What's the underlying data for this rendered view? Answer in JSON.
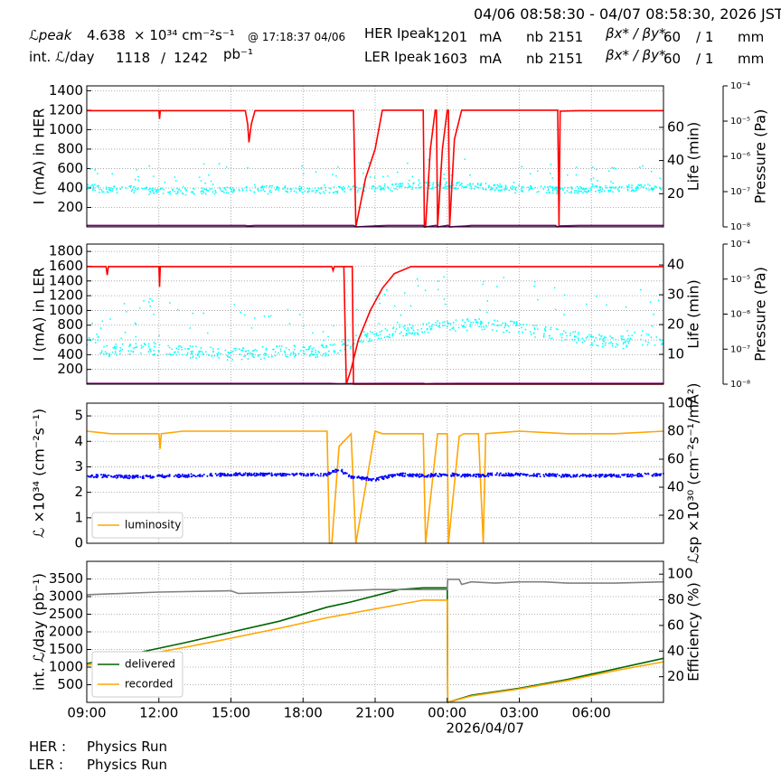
{
  "header": {
    "time_range": "04/06 08:58:30 - 04/07 08:58:30, 2026 JST",
    "row1": {
      "lumi_peak_label": "ℒpeak",
      "lumi_peak_value": "4.638",
      "lumi_peak_unit": "× 10³⁴ cm⁻²s⁻¹",
      "lumi_peak_time": "@ 17:18:37 04/06",
      "ring_label": "HER Ipeak",
      "current": "1201",
      "current_unit": "mA",
      "nb_label": "nb",
      "nb": "2151",
      "beta_label": "βx* / βy*",
      "beta_x": "60",
      "beta_y": "/ 1",
      "beta_unit": "mm"
    },
    "row2": {
      "intlumi_label": "int. ℒ/day",
      "intlumi_recorded": "1118",
      "sep": "/",
      "intlumi_delivered": "1242",
      "intlumi_unit": "pb⁻¹",
      "ring_label": "LER Ipeak",
      "current": "1603",
      "current_unit": "mA",
      "nb_label": "nb",
      "nb": "2151",
      "beta_label": "βx* / βy*",
      "beta_x": "60",
      "beta_y": "/ 1",
      "beta_unit": "mm"
    }
  },
  "footer": {
    "her_label": "HER :",
    "her_status": "Physics Run",
    "ler_label": "LER :",
    "ler_status": "Physics Run"
  },
  "colors": {
    "current": "#ff0000",
    "life": "#00ffff",
    "pressure": "#800080",
    "luminosity": "#ffa500",
    "specific": "#0000ff",
    "delivered": "#006400",
    "recorded": "#ffa500",
    "efficiency": "#808080"
  },
  "chart_data": [
    {
      "id": "her",
      "type": "line",
      "ylabel": "I (mA) in HER",
      "ylim": [
        0,
        1450
      ],
      "yticks": [
        200,
        400,
        600,
        800,
        1000,
        1200,
        1400
      ],
      "y2label": "Life (min)",
      "y2lim": [
        0,
        85
      ],
      "y2ticks": [
        20,
        40,
        60
      ],
      "y3label": "Pressure (Pa)",
      "y3ticks": [
        "10⁻⁴",
        "10⁻⁵",
        "10⁻⁶",
        "10⁻⁷",
        "10⁻⁸"
      ],
      "grid": true,
      "series": [
        {
          "role": "current",
          "x": [
            0,
            0.6,
            3.0,
            3.03,
            3.06,
            6.6,
            6.7,
            6.75,
            6.85,
            7.0,
            11.0,
            11.1,
            11.2,
            11.6,
            12.0,
            12.3,
            12.8,
            13.0,
            14.0,
            14.05,
            14.1,
            14.3,
            14.5,
            14.55,
            14.6,
            14.8,
            15.0,
            15.05,
            15.1,
            15.3,
            15.6,
            15.7,
            15.8,
            16.2,
            16.5,
            17.0,
            18.0,
            18.5,
            19.0,
            19.6,
            19.65,
            19.7,
            20.5,
            24.0
          ],
          "y": [
            1195,
            1195,
            1195,
            1110,
            1195,
            1195,
            1050,
            870,
            1060,
            1195,
            1195,
            1195,
            0,
            500,
            800,
            1200,
            1200,
            1200,
            1200,
            0,
            0,
            800,
            1200,
            1200,
            0,
            800,
            1200,
            1200,
            0,
            900,
            1200,
            1200,
            1200,
            1200,
            1200,
            1200,
            1200,
            1200,
            1200,
            1200,
            0,
            1190,
            1195,
            1195
          ]
        },
        {
          "role": "pressure",
          "x": [
            0,
            6.6,
            6.7,
            7.0,
            11.0,
            11.1,
            11.2,
            12.0,
            12.5,
            13.0,
            14.0,
            14.05,
            14.1,
            14.5,
            14.55,
            14.6,
            15.0,
            15.05,
            15.1,
            15.8,
            16.0,
            17.0,
            18.0,
            19.5,
            19.6,
            19.7,
            20.5,
            24.0
          ],
          "y": [
            15,
            15,
            10,
            15,
            15,
            15,
            0,
            10,
            15,
            15,
            15,
            0,
            0,
            15,
            15,
            0,
            15,
            15,
            0,
            10,
            15,
            15,
            15,
            15,
            0,
            10,
            15,
            15
          ]
        }
      ],
      "lifetime": {
        "x": [
          0.5,
          2.0,
          4.0,
          6.0,
          8.0,
          10.0,
          12.5,
          14.2,
          16.0,
          18.0,
          20.0,
          22.0,
          23.5
        ],
        "y": [
          22,
          23,
          21,
          22,
          23,
          22,
          24,
          25,
          25,
          23,
          22,
          23,
          24
        ]
      }
    },
    {
      "id": "ler",
      "type": "line",
      "ylabel": "I (mA) in LER",
      "ylim": [
        0,
        1900
      ],
      "yticks": [
        200,
        400,
        600,
        800,
        1000,
        1200,
        1400,
        1600,
        1800
      ],
      "y2label": "Life (min)",
      "y2lim": [
        0,
        47
      ],
      "y2ticks": [
        10,
        20,
        30,
        40
      ],
      "y3label": "Pressure (Pa)",
      "y3ticks": [
        "10⁻⁴",
        "10⁻⁵",
        "10⁻⁶",
        "10⁻⁷",
        "10⁻⁸"
      ],
      "grid": true,
      "series": [
        {
          "role": "current",
          "x": [
            0,
            0.8,
            0.85,
            0.9,
            3.0,
            3.03,
            3.06,
            10.2,
            10.25,
            10.3,
            11.0,
            11.05,
            11.1,
            13.0,
            13.05,
            13.1,
            14.0,
            15.0,
            15.05,
            15.1,
            16.0,
            18.0,
            19.0,
            24.0
          ],
          "y": [
            1595,
            1595,
            1480,
            1595,
            1595,
            1320,
            1595,
            1595,
            1540,
            1595,
            1595,
            1595,
            0,
            0,
            0,
            0,
            0,
            0,
            0,
            0,
            0,
            0,
            0,
            0
          ]
        },
        {
          "role": "current2",
          "x": [
            10.7,
            10.8,
            11.0,
            11.3,
            11.8,
            12.3,
            12.8,
            13.5,
            14.0,
            14.1,
            14.3,
            14.7,
            15.0,
            15.5,
            16.0,
            17.0,
            18.0,
            20.0,
            22.0,
            24.0
          ],
          "y": [
            1595,
            0,
            200,
            600,
            1000,
            1300,
            1500,
            1595,
            1595,
            1595,
            1595,
            1595,
            1595,
            1595,
            1595,
            1595,
            1595,
            1595,
            1595,
            1595
          ]
        },
        {
          "role": "pressure",
          "x": [
            0,
            10.0,
            10.1,
            10.5,
            11.0,
            11.3,
            11.6,
            12.5,
            13.5,
            14.0,
            14.1,
            14.5,
            15.0,
            15.5,
            16.0,
            17.5,
            18.0,
            19.0,
            20.0,
            22.0,
            24.0
          ],
          "y": [
            10,
            10,
            10,
            5,
            8,
            9,
            9,
            10,
            10,
            10,
            5,
            8,
            9,
            10,
            10,
            10,
            10,
            10,
            10,
            10,
            10
          ]
        }
      ],
      "lifetime": {
        "x": [
          0.5,
          2.0,
          4.0,
          6.0,
          8.0,
          10.0,
          12.0,
          14.0,
          16.0,
          18.0,
          20.0,
          22.0,
          23.5
        ],
        "y": [
          11,
          12,
          11,
          10,
          11,
          11,
          17,
          19,
          20,
          19,
          16,
          14,
          15
        ]
      }
    },
    {
      "id": "lumi",
      "type": "line",
      "ylabel": "ℒ ×10³⁴ (cm⁻²s⁻¹)",
      "ylim": [
        0,
        5.5
      ],
      "yticks": [
        0,
        1,
        2,
        3,
        4,
        5
      ],
      "y2label": "ℒsp ×10³⁰ (cm⁻²s⁻¹/mA²)",
      "y2lim": [
        0,
        100
      ],
      "y2ticks": [
        20,
        40,
        60,
        80,
        100
      ],
      "grid": true,
      "legend": {
        "position": "lower-left",
        "entries": [
          "luminosity"
        ]
      },
      "series": [
        {
          "name": "luminosity",
          "role": "luminosity",
          "x": [
            0,
            1.0,
            2.0,
            3.0,
            3.05,
            3.1,
            4.0,
            6.0,
            8.0,
            10.0,
            10.1,
            10.2,
            10.5,
            11.0,
            11.2,
            12.0,
            12.3,
            13.0,
            14.0,
            14.1,
            14.6,
            15.0,
            15.05,
            15.5,
            15.7,
            16.0,
            16.3,
            16.5,
            16.6,
            18.0,
            20.0,
            22.0,
            24.0
          ],
          "y": [
            4.4,
            4.3,
            4.3,
            4.3,
            3.7,
            4.3,
            4.4,
            4.4,
            4.4,
            4.4,
            0,
            0,
            3.8,
            4.3,
            0,
            4.4,
            4.3,
            4.3,
            4.3,
            0,
            4.3,
            4.3,
            0,
            4.2,
            4.3,
            4.3,
            4.3,
            0,
            4.3,
            4.4,
            4.3,
            4.3,
            4.4
          ]
        },
        {
          "name": "",
          "role": "specific",
          "x": [
            0,
            2.0,
            4.0,
            6.0,
            8.0,
            10.0,
            10.5,
            11.0,
            12.0,
            13.0,
            14.0,
            15.0,
            16.0,
            17.0,
            18.0,
            20.0,
            22.0,
            24.0
          ],
          "y": [
            2.65,
            2.6,
            2.65,
            2.7,
            2.7,
            2.7,
            2.9,
            2.6,
            2.5,
            2.7,
            2.65,
            2.7,
            2.65,
            2.7,
            2.7,
            2.65,
            2.65,
            2.7
          ]
        }
      ]
    },
    {
      "id": "intlumi",
      "type": "line",
      "ylabel": "int. ℒ/day (pb⁻¹)",
      "ylim": [
        0,
        4000
      ],
      "yticks": [
        500,
        1000,
        1500,
        2000,
        2500,
        3000,
        3500
      ],
      "y2label": "Efficiency (%)",
      "y2lim": [
        0,
        110
      ],
      "y2ticks": [
        20,
        40,
        60,
        80,
        100
      ],
      "grid": true,
      "legend": {
        "position": "lower-left",
        "entries": [
          "delivered",
          "recorded"
        ]
      },
      "xticks": [
        "09:00",
        "12:00",
        "15:00",
        "18:00",
        "21:00",
        "00:00",
        "03:00",
        "06:00"
      ],
      "xlabel": "2026/04/07",
      "series": [
        {
          "name": "delivered",
          "role": "delivered",
          "x": [
            0,
            4.0,
            8.0,
            10.0,
            11.0,
            13.0,
            14.0,
            15.0,
            15.02,
            16.0,
            17.0,
            18.0,
            20.0,
            22.0,
            24.0
          ],
          "y": [
            1100,
            1680,
            2300,
            2700,
            2850,
            3200,
            3250,
            3250,
            0,
            200,
            300,
            400,
            650,
            950,
            1250
          ]
        },
        {
          "name": "recorded",
          "role": "recorded",
          "x": [
            0,
            4.0,
            5.5,
            8.0,
            10.0,
            12.0,
            14.0,
            15.0,
            15.02,
            16.0,
            17.0,
            18.0,
            20.0,
            22.0,
            24.0
          ],
          "y": [
            1050,
            1550,
            1750,
            2100,
            2400,
            2650,
            2900,
            2900,
            0,
            180,
            280,
            380,
            620,
            900,
            1150
          ]
        },
        {
          "name": "",
          "role": "efficiency",
          "x": [
            0,
            3.0,
            6.0,
            6.3,
            9.0,
            12.0,
            15.0,
            15.02,
            15.5,
            15.6,
            16.0,
            17.0,
            18.0,
            19.0,
            20.0,
            22.0,
            24.0
          ],
          "y": [
            84,
            86,
            87,
            85,
            86,
            88,
            88,
            96,
            96,
            92,
            94,
            93,
            94,
            94,
            93,
            93,
            94
          ]
        }
      ]
    }
  ]
}
